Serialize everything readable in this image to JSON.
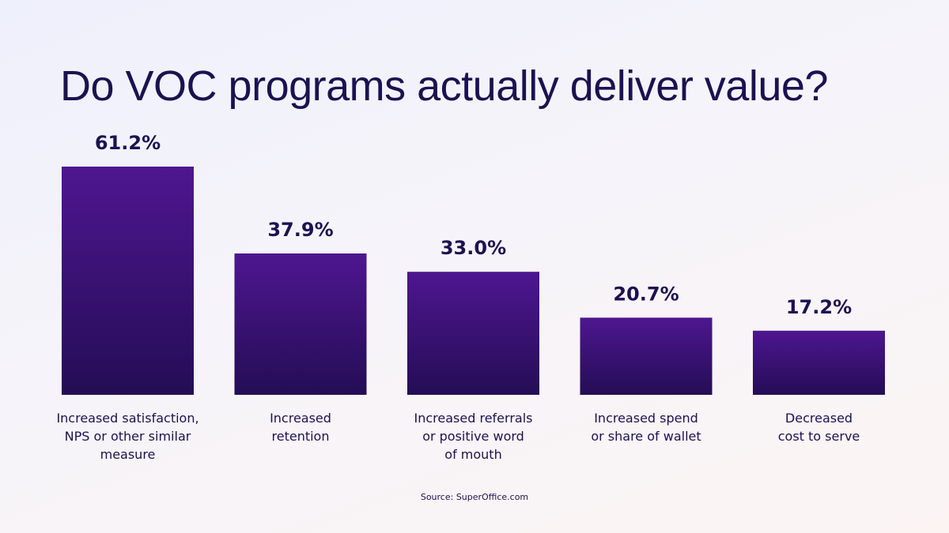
{
  "chart_data": {
    "type": "bar",
    "title": "Do VOC programs actually deliver value?",
    "categories": [
      [
        "Increased satisfaction,",
        "NPS or other similar",
        "measure"
      ],
      [
        "Increased",
        "retention"
      ],
      [
        "Increased referrals",
        "or positive word",
        "of mouth"
      ],
      [
        "Increased spend",
        "or share of wallet"
      ],
      [
        "Decreased",
        "cost to serve"
      ]
    ],
    "values": [
      61.2,
      37.9,
      33.0,
      20.7,
      17.2
    ],
    "value_labels": [
      "61.2%",
      "37.9%",
      "33.0%",
      "20.7%",
      "17.2%"
    ],
    "xlabel": "",
    "ylabel": "",
    "ylim": [
      0,
      61.2
    ],
    "grid": false,
    "source": "Source: SuperOffice.com"
  },
  "colors": {
    "bar_top": "#4e1690",
    "bar_bottom": "#240d55",
    "text": "#1c1250"
  }
}
